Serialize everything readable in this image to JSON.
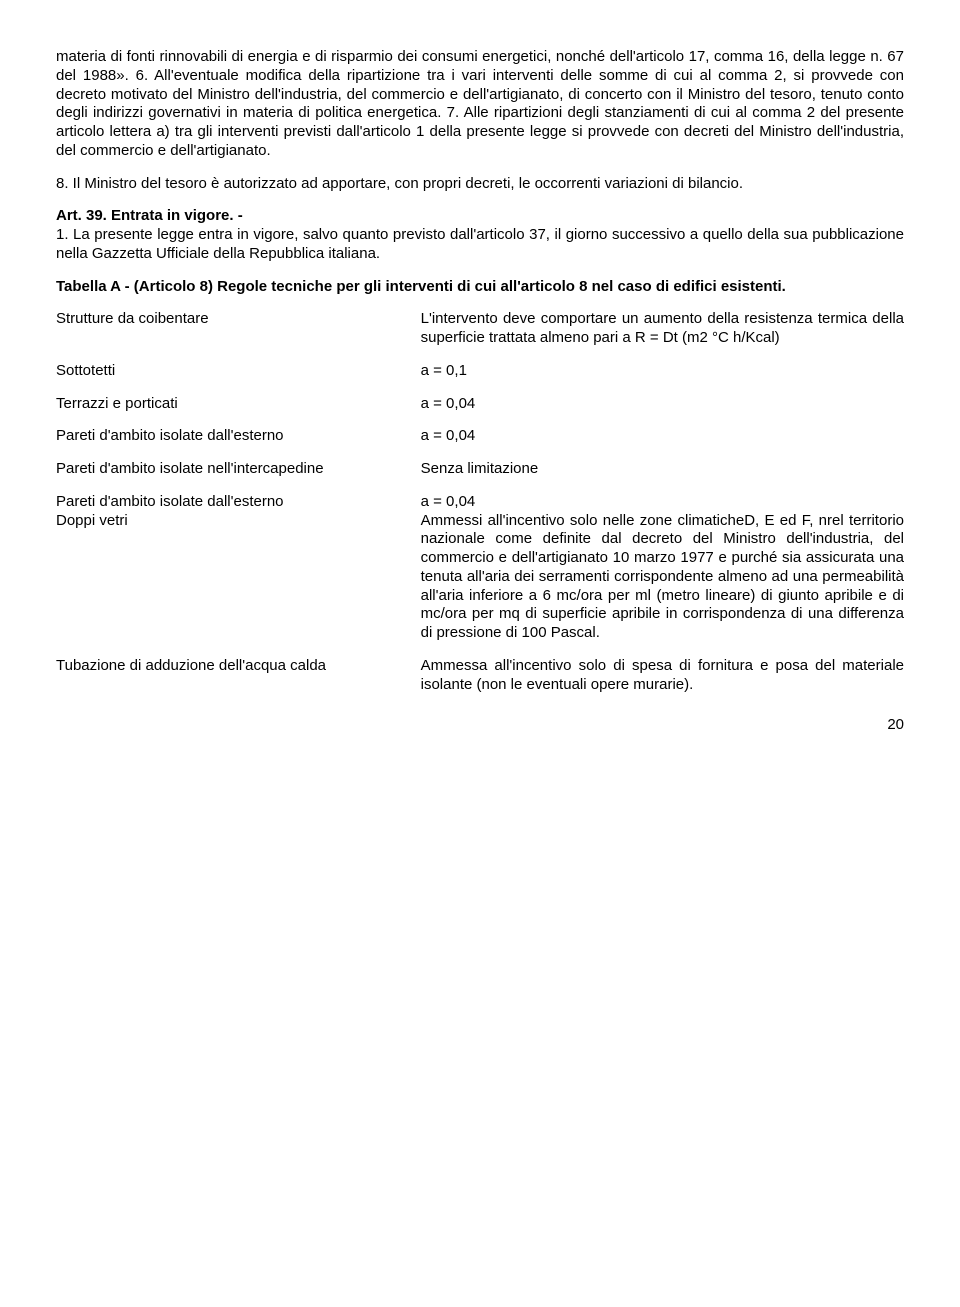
{
  "intro_para": "materia di fonti rinnovabili di energia e di risparmio dei consumi energetici, nonché dell'articolo 17, comma 16, della legge n. 67 del 1988». 6. All'eventuale modifica della ripartizione tra i vari interventi delle somme di cui al comma 2, si provvede con decreto motivato del Ministro dell'industria, del commercio e dell'artigianato, di concerto con il Ministro del tesoro, tenuto conto degli indirizzi governativi in materia di politica energetica. 7. Alle ripartizioni degli stanziamenti di cui al comma 2 del presente articolo lettera a) tra gli interventi previsti dall'articolo 1 della presente legge si provvede con decreti del Ministro dell'industria, del commercio e dell'artigianato.",
  "intro_para2": "8. Il Ministro del tesoro è autorizzato ad apportare, con propri decreti, le occorrenti variazioni di bilancio.",
  "art39_heading": "Art. 39. Entrata in vigore. -",
  "art39_body": "1. La presente legge entra in vigore, salvo quanto previsto dall'articolo 37, il giorno successivo a quello della sua pubblicazione nella Gazzetta Ufficiale della Repubblica italiana.",
  "tabA_heading": "Tabella A - (Articolo 8) Regole tecniche per gli interventi di cui all'articolo 8 nel caso di edifici esistenti.",
  "rows": [
    {
      "left": "Strutture da coibentare",
      "right": "L'intervento deve comportare un aumento della resistenza termica della superficie trattata almeno pari a R = Dt (m2 °C h/Kcal)"
    },
    {
      "left": "Sottotetti",
      "right": "a = 0,1"
    },
    {
      "left": "Terrazzi e porticati",
      "right": "a = 0,04"
    },
    {
      "left": "Pareti d'ambito isolate dall'esterno",
      "right": "a = 0,04"
    },
    {
      "left": "Pareti d'ambito isolate nell'intercapedine",
      "right": "Senza limitazione"
    },
    {
      "left": "Pareti d'ambito isolate dall'esterno\nDoppi vetri",
      "right": "a = 0,04\nAmmessi all'incentivo solo nelle zone climaticheD, E ed F, nrel territorio nazionale come definite dal decreto del Ministro dell'industria, del commercio e dell'artigianato 10 marzo 1977 e purché sia assicurata una tenuta all'aria dei serramenti corrispondente almeno ad una permeabilità all'aria inferiore a 6 mc/ora per ml (metro lineare) di giunto apribile e di mc/ora per mq di superficie apribile in corrispondenza di una differenza di pressione di 100 Pascal."
    },
    {
      "left": "Tubazione di adduzione dell'acqua calda",
      "right": "Ammessa all'incentivo solo di spesa di fornitura e posa del materiale isolante (non le eventuali opere murarie)."
    }
  ],
  "page_number": "20"
}
